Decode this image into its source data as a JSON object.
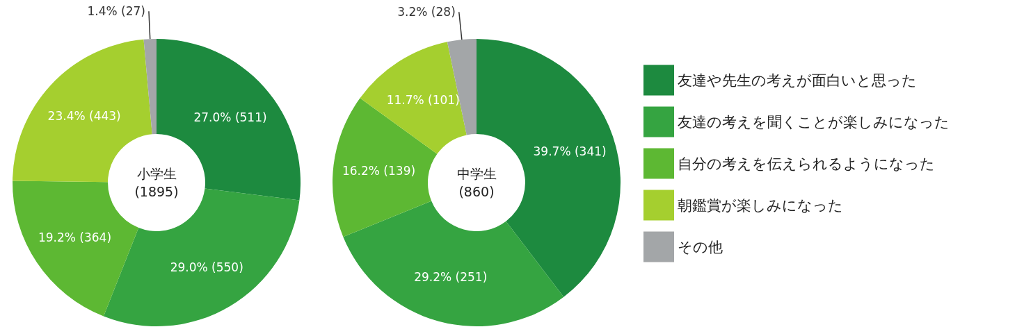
{
  "chart_data": [
    {
      "type": "donut",
      "annotations": [
        "小学生",
        "(1895)"
      ],
      "categories": [
        null,
        null,
        null,
        null,
        null
      ],
      "values": [
        511,
        550,
        364,
        443,
        27
      ],
      "value_labels": [
        "27.0% (511)",
        "29.0% (550)",
        "19.2% (364)",
        "23.4% (443)",
        "1.4% (27)"
      ],
      "colors": [
        "#1d8a3f",
        "#35a441",
        "#5db833",
        "#a5cf2f",
        "#a3a6a8"
      ],
      "legend": false
    },
    {
      "type": "donut",
      "annotations": [
        "中学生",
        "(860)"
      ],
      "categories": [
        "友達や先生の考えが面白いと思った",
        "友達の考えを聞くことが楽しみになった",
        "自分の考えを伝えられるようになった",
        "朝鑑賞が楽しみになった",
        "その他"
      ],
      "values": [
        341,
        251,
        139,
        101,
        28
      ],
      "value_labels": [
        "39.7% (341)",
        "29.2% (251)",
        "16.2% (139)",
        "11.7% (101)",
        "3.2% (28)"
      ],
      "colors": [
        "#1d8a3f",
        "#35a441",
        "#5db833",
        "#a5cf2f",
        "#a3a6a8"
      ],
      "legend": "right"
    }
  ]
}
